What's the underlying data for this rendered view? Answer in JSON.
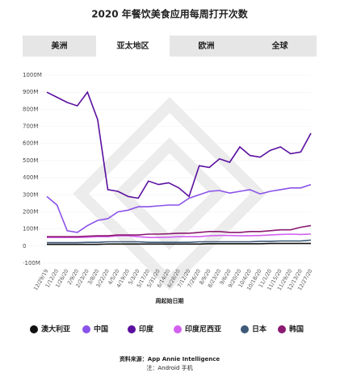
{
  "tabs": [
    "美洲",
    "亚太地区",
    "欧洲",
    "全球"
  ],
  "source": "资料来源：App Annie Intelligence",
  "note": "注：Android 手机",
  "chart_data": {
    "type": "line",
    "title": "2020 年餐饮美食应用每周打开次数",
    "x_label": "周起始日期",
    "categories": [
      "12/29/19",
      "1/12/20",
      "1/26/20",
      "2/9/20",
      "2/23/20",
      "3/8/20",
      "3/22/20",
      "4/5/20",
      "4/19/20",
      "5/3/20",
      "5/17/20",
      "5/31/20",
      "6/14/20",
      "6/28/20",
      "7/12/20",
      "7/26/20",
      "8/9/20",
      "8/23/20",
      "9/6/20",
      "9/20/20",
      "10/4/20",
      "10/18/20",
      "11/1/20",
      "11/15/20",
      "11/29/20",
      "12/13/20",
      "12/27/20"
    ],
    "ylim": [
      -100,
      1000
    ],
    "yticks": [
      {
        "value": -100,
        "label": "-100M"
      },
      0,
      {
        "value": 100,
        "label": "100M"
      },
      {
        "value": 200,
        "label": "200M"
      },
      {
        "value": 300,
        "label": "300M"
      },
      {
        "value": 400,
        "label": "400M"
      },
      {
        "value": 500,
        "label": "500M"
      },
      {
        "value": 600,
        "label": "600M"
      },
      {
        "value": 700,
        "label": "700M"
      },
      {
        "value": 800,
        "label": "800M"
      },
      {
        "value": 900,
        "label": "900M"
      },
      {
        "value": 1000,
        "label": "1000M"
      }
    ],
    "series": [
      {
        "name": "澳大利亚",
        "color": "#111111",
        "values": [
          10,
          10,
          10,
          10,
          10,
          10,
          12,
          12,
          12,
          12,
          12,
          12,
          12,
          12,
          12,
          12,
          14,
          14,
          14,
          14,
          14,
          14,
          15,
          15,
          15,
          15,
          15
        ]
      },
      {
        "name": "中国",
        "color": "#8a52ea",
        "values": [
          290,
          240,
          90,
          80,
          120,
          150,
          160,
          200,
          210,
          230,
          230,
          235,
          240,
          240,
          280,
          300,
          320,
          325,
          310,
          320,
          330,
          305,
          320,
          330,
          340,
          340,
          360
        ]
      },
      {
        "name": "印度",
        "color": "#5b0f9f",
        "values": [
          900,
          870,
          840,
          820,
          900,
          740,
          330,
          320,
          290,
          280,
          380,
          360,
          370,
          340,
          290,
          470,
          460,
          510,
          490,
          580,
          530,
          520,
          560,
          580,
          540,
          550,
          660
        ]
      },
      {
        "name": "印度尼西亚",
        "color": "#d35ff0",
        "values": [
          50,
          50,
          50,
          50,
          52,
          55,
          55,
          60,
          60,
          55,
          50,
          50,
          52,
          55,
          55,
          55,
          60,
          62,
          62,
          60,
          60,
          62,
          65,
          68,
          70,
          68,
          70
        ]
      },
      {
        "name": "日本",
        "color": "#3d5a78",
        "values": [
          20,
          20,
          20,
          20,
          22,
          22,
          25,
          25,
          25,
          25,
          22,
          22,
          22,
          22,
          22,
          25,
          25,
          25,
          25,
          25,
          25,
          28,
          28,
          30,
          30,
          30,
          35
        ]
      },
      {
        "name": "韩国",
        "color": "#8b1a70",
        "values": [
          55,
          55,
          55,
          55,
          58,
          60,
          60,
          65,
          65,
          65,
          70,
          70,
          72,
          75,
          75,
          80,
          85,
          85,
          80,
          80,
          85,
          85,
          90,
          95,
          95,
          110,
          120
        ]
      }
    ]
  }
}
